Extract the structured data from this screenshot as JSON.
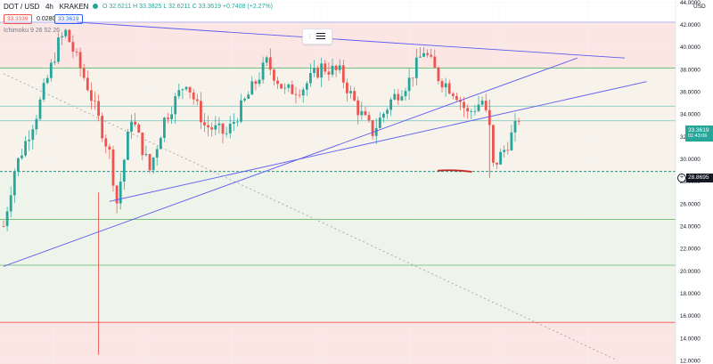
{
  "header": {
    "symbol": "DOT / USD",
    "interval": "4h",
    "exchange": "KRAKEN",
    "ohlc": "O 32.6211  H 33.3825  L 32.6211  C 33.3619  +0.7408 (+2.27%)",
    "bid": "33.3339",
    "spread": "0.0280",
    "ask": "33.3619",
    "indicator": "Ichimoku 9 26 52 26",
    "currency_label": "USD"
  },
  "current_price": {
    "value": "33.3619",
    "countdown": "01:43:06"
  },
  "marked_price": {
    "value": "28.8695"
  },
  "colors": {
    "up": "#26a69a",
    "down": "#ef5350",
    "trendline": "#5c5cf0",
    "green_level": "#66bb6a",
    "red_level": "#ef5350",
    "teal_level": "#80cbc4",
    "grey_dashed": "#9e9e9e",
    "zone_red": "#fbe6e4",
    "zone_green": "#eef4e9"
  },
  "chart_data": {
    "type": "candlestick",
    "y_axis": {
      "ticks": [
        "12.0000",
        "14.0000",
        "16.0000",
        "18.0000",
        "20.0000",
        "22.0000",
        "24.0000",
        "26.0000",
        "28.0000",
        "30.0000",
        "32.0000",
        "34.0000",
        "36.0000",
        "38.0000",
        "40.0000",
        "42.0000",
        "44.0000"
      ],
      "range": [
        12,
        44.5
      ]
    },
    "horizontal_levels": [
      {
        "price": 42.2,
        "color": "purple_thin"
      },
      {
        "price": 38.1,
        "color": "green"
      },
      {
        "price": 34.7,
        "color": "teal"
      },
      {
        "price": 33.4,
        "color": "teal"
      },
      {
        "price": 28.87,
        "color": "teal_dashed"
      },
      {
        "price": 24.6,
        "color": "green"
      },
      {
        "price": 20.5,
        "color": "green"
      },
      {
        "price": 15.4,
        "color": "red"
      },
      {
        "price": 11.6,
        "color": "red"
      }
    ],
    "key_points": [
      {
        "t": 0,
        "price": 24.0
      },
      {
        "t": 3,
        "price": 29.0
      },
      {
        "t": 9,
        "price": 34.0
      },
      {
        "t": 15,
        "price": 40.3
      },
      {
        "t": 17,
        "price": 41.3
      },
      {
        "t": 23,
        "price": 36.5
      },
      {
        "t": 29,
        "price": 30.5
      },
      {
        "t": 31,
        "price": 26.1
      },
      {
        "t": 35,
        "price": 33.8
      },
      {
        "t": 40,
        "price": 29.0
      },
      {
        "t": 44,
        "price": 33.5
      },
      {
        "t": 50,
        "price": 37.0
      },
      {
        "t": 55,
        "price": 33.0
      },
      {
        "t": 61,
        "price": 32.2
      },
      {
        "t": 67,
        "price": 35.7
      },
      {
        "t": 72,
        "price": 38.6
      },
      {
        "t": 77,
        "price": 36.0
      },
      {
        "t": 82,
        "price": 36.4
      },
      {
        "t": 87,
        "price": 38.2
      },
      {
        "t": 92,
        "price": 37.7
      },
      {
        "t": 97,
        "price": 34.4
      },
      {
        "t": 101,
        "price": 32.4
      },
      {
        "t": 106,
        "price": 35.2
      },
      {
        "t": 111,
        "price": 37.0
      },
      {
        "t": 115,
        "price": 39.7
      },
      {
        "t": 119,
        "price": 37.3
      },
      {
        "t": 124,
        "price": 35.8
      },
      {
        "t": 127,
        "price": 34.0
      },
      {
        "t": 131,
        "price": 35.2
      },
      {
        "t": 133,
        "price": 32.7
      },
      {
        "t": 134,
        "price": 29.3
      },
      {
        "t": 137,
        "price": 30.8
      },
      {
        "t": 141,
        "price": 33.36
      }
    ],
    "wicks": [
      {
        "t": 26,
        "low": 12.5,
        "high": 27.0
      },
      {
        "t": 133,
        "low": 28.3,
        "high": 35.3
      }
    ],
    "trendlines": [
      {
        "from": {
          "t": 20,
          "price": 42.2
        },
        "to": {
          "t": 170,
          "price": 39.0
        }
      },
      {
        "from": {
          "t": 0,
          "price": 20.4
        },
        "to": {
          "t": 157,
          "price": 39.0
        }
      },
      {
        "from": {
          "t": 29,
          "price": 26.2
        },
        "to": {
          "t": 176,
          "price": 36.9
        }
      }
    ],
    "dashed_line": {
      "from": {
        "t": 0,
        "price": 37.6
      },
      "to": {
        "t": 168,
        "price": 12.0
      }
    }
  }
}
